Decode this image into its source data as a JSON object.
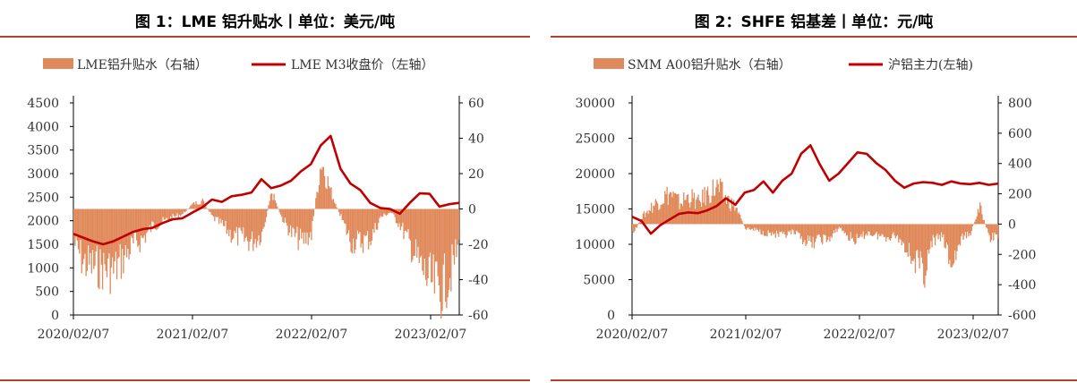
{
  "charts": [
    {
      "title": "图 1：LME 铝升贴水丨单位：美元/吨",
      "legend": {
        "bar_label": "LME铝升贴水（右轴）",
        "line_label": "LME M3收盘价（左轴）"
      },
      "left_ticks": [
        "4500",
        "4000",
        "3500",
        "3000",
        "2500",
        "2000",
        "1500",
        "1000",
        "500",
        "0"
      ],
      "right_ticks": [
        "60",
        "40",
        "20",
        "0",
        "-20",
        "-40",
        "-60"
      ],
      "x_ticks": [
        "2020/02/07",
        "2021/02/07",
        "2022/02/07",
        "2023/02/07"
      ]
    },
    {
      "title": "图 2：SHFE 铝基差丨单位：元/吨",
      "legend": {
        "bar_label": "SMM A00铝升贴水（右轴）",
        "line_label": "沪铝主力(左轴)"
      },
      "left_ticks": [
        "30000",
        "25000",
        "20000",
        "15000",
        "10000",
        "5000",
        "0"
      ],
      "right_ticks": [
        "800",
        "600",
        "400",
        "200",
        "0",
        "-200",
        "-400",
        "-600"
      ],
      "x_ticks": [
        "2020/02/07",
        "2021/02/07",
        "2022/02/07",
        "2023/02/07"
      ]
    }
  ],
  "colors": {
    "line": "#c00000",
    "bar": "#e0895a",
    "rule": "#b5412b"
  },
  "chart_data": [
    {
      "type": "line+bar",
      "title": "图 1：LME 铝升贴水丨单位：美元/吨",
      "x_range": [
        "2020/02/07",
        "2023/05/31"
      ],
      "left_ylim": [
        0,
        4500
      ],
      "right_ylim": [
        -60,
        60
      ],
      "series": [
        {
          "name": "LME M3收盘价（左轴）",
          "axis": "left",
          "points": [
            [
              0,
              1720
            ],
            [
              1,
              1640
            ],
            [
              2,
              1560
            ],
            [
              3,
              1500
            ],
            [
              4,
              1560
            ],
            [
              5,
              1660
            ],
            [
              6,
              1760
            ],
            [
              7,
              1820
            ],
            [
              8,
              1850
            ],
            [
              9,
              1950
            ],
            [
              10,
              2030
            ],
            [
              11,
              2050
            ],
            [
              12,
              2170
            ],
            [
              13,
              2280
            ],
            [
              14,
              2450
            ],
            [
              15,
              2400
            ],
            [
              16,
              2520
            ],
            [
              17,
              2550
            ],
            [
              18,
              2600
            ],
            [
              19,
              2880
            ],
            [
              20,
              2690
            ],
            [
              21,
              2750
            ],
            [
              22,
              2850
            ],
            [
              23,
              3050
            ],
            [
              24,
              3200
            ],
            [
              25,
              3600
            ],
            [
              26,
              3800
            ],
            [
              27,
              3100
            ],
            [
              28,
              2790
            ],
            [
              29,
              2650
            ],
            [
              30,
              2380
            ],
            [
              31,
              2270
            ],
            [
              32,
              2250
            ],
            [
              33,
              2150
            ],
            [
              34,
              2380
            ],
            [
              35,
              2580
            ],
            [
              36,
              2570
            ],
            [
              37,
              2300
            ],
            [
              38,
              2350
            ],
            [
              39,
              2380
            ]
          ]
        },
        {
          "name": "LME铝升贴水（右轴）",
          "axis": "right",
          "points": [
            [
              0,
              -20
            ],
            [
              1,
              -33
            ],
            [
              2,
              -35
            ],
            [
              3,
              -36
            ],
            [
              4,
              -38
            ],
            [
              5,
              -30
            ],
            [
              6,
              -22
            ],
            [
              7,
              -18
            ],
            [
              8,
              -10
            ],
            [
              9,
              -8
            ],
            [
              10,
              -5
            ],
            [
              11,
              -3
            ],
            [
              12,
              3
            ],
            [
              13,
              5
            ],
            [
              14,
              -5
            ],
            [
              15,
              -10
            ],
            [
              16,
              -16
            ],
            [
              17,
              -18
            ],
            [
              18,
              -20
            ],
            [
              19,
              -15
            ],
            [
              20,
              10
            ],
            [
              21,
              -5
            ],
            [
              22,
              -15
            ],
            [
              23,
              -20
            ],
            [
              24,
              -15
            ],
            [
              25,
              30
            ],
            [
              26,
              10
            ],
            [
              27,
              -5
            ],
            [
              28,
              -20
            ],
            [
              29,
              -20
            ],
            [
              30,
              -18
            ],
            [
              31,
              -5
            ],
            [
              32,
              -2
            ],
            [
              33,
              -10
            ],
            [
              34,
              -22
            ],
            [
              35,
              -35
            ],
            [
              36,
              -45
            ],
            [
              37,
              -50
            ],
            [
              38,
              -40
            ],
            [
              39,
              -20
            ]
          ]
        }
      ]
    },
    {
      "type": "line+bar",
      "title": "图 2：SHFE 铝基差丨单位：元/吨",
      "x_range": [
        "2020/02/07",
        "2023/05/31"
      ],
      "left_ylim": [
        0,
        30000
      ],
      "right_ylim": [
        -600,
        800
      ],
      "series": [
        {
          "name": "沪铝主力(左轴)",
          "axis": "left",
          "points": [
            [
              0,
              13900
            ],
            [
              1,
              13300
            ],
            [
              2,
              11500
            ],
            [
              3,
              12700
            ],
            [
              4,
              13500
            ],
            [
              5,
              14300
            ],
            [
              6,
              14500
            ],
            [
              7,
              14400
            ],
            [
              8,
              14800
            ],
            [
              9,
              15400
            ],
            [
              10,
              16500
            ],
            [
              11,
              15600
            ],
            [
              12,
              17300
            ],
            [
              13,
              17700
            ],
            [
              14,
              18900
            ],
            [
              15,
              17300
            ],
            [
              16,
              19000
            ],
            [
              17,
              20000
            ],
            [
              18,
              22800
            ],
            [
              19,
              24000
            ],
            [
              20,
              21300
            ],
            [
              21,
              19000
            ],
            [
              22,
              20000
            ],
            [
              23,
              21500
            ],
            [
              24,
              23000
            ],
            [
              25,
              22800
            ],
            [
              26,
              21500
            ],
            [
              27,
              20500
            ],
            [
              28,
              19000
            ],
            [
              29,
              18000
            ],
            [
              30,
              18600
            ],
            [
              31,
              18800
            ],
            [
              32,
              18700
            ],
            [
              33,
              18400
            ],
            [
              34,
              18900
            ],
            [
              35,
              18600
            ],
            [
              36,
              18500
            ],
            [
              37,
              18700
            ],
            [
              38,
              18400
            ],
            [
              39,
              18600
            ]
          ]
        },
        {
          "name": "SMM A00铝升贴水（右轴）",
          "axis": "right",
          "points": [
            [
              0,
              -80
            ],
            [
              1,
              50
            ],
            [
              2,
              120
            ],
            [
              3,
              180
            ],
            [
              4,
              220
            ],
            [
              5,
              150
            ],
            [
              6,
              200
            ],
            [
              7,
              150
            ],
            [
              8,
              220
            ],
            [
              9,
              260
            ],
            [
              10,
              180
            ],
            [
              11,
              120
            ],
            [
              12,
              -30
            ],
            [
              13,
              -40
            ],
            [
              14,
              -60
            ],
            [
              15,
              -70
            ],
            [
              16,
              -90
            ],
            [
              17,
              -60
            ],
            [
              18,
              -100
            ],
            [
              19,
              -140
            ],
            [
              20,
              -100
            ],
            [
              21,
              -110
            ],
            [
              22,
              -20
            ],
            [
              23,
              -90
            ],
            [
              24,
              -120
            ],
            [
              25,
              -60
            ],
            [
              26,
              -80
            ],
            [
              27,
              -90
            ],
            [
              28,
              -80
            ],
            [
              29,
              -150
            ],
            [
              30,
              -250
            ],
            [
              31,
              -350
            ],
            [
              32,
              -120
            ],
            [
              33,
              -90
            ],
            [
              34,
              -300
            ],
            [
              35,
              -110
            ],
            [
              36,
              -60
            ],
            [
              37,
              120
            ],
            [
              38,
              -100
            ],
            [
              39,
              -80
            ]
          ]
        }
      ]
    }
  ]
}
